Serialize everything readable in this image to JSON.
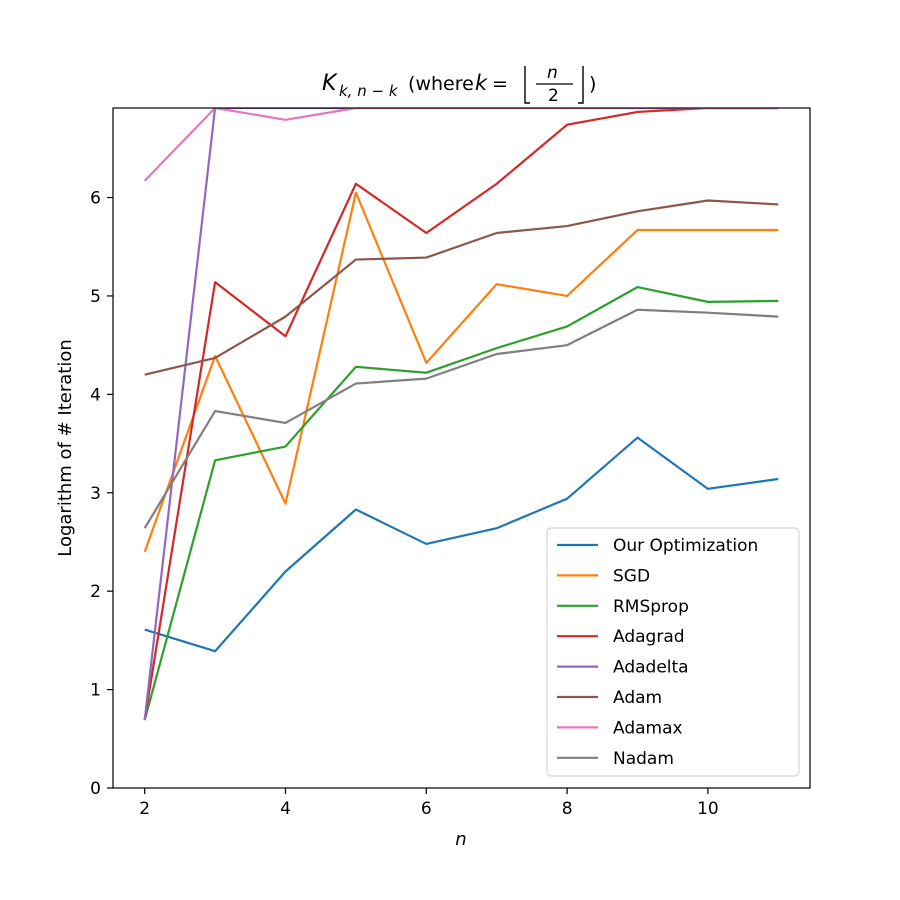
{
  "chart_data": {
    "type": "line",
    "title": "K_{k, n−k} (where k = ⌊n/2⌋)",
    "title_parts": {
      "k_letter": "K",
      "subscript": "k, n − k",
      "where_text": " (where ",
      "k_var": "k",
      "equals": " = ",
      "numerator": "n",
      "denominator": "2",
      "close_paren": ")"
    },
    "xlabel": "n",
    "ylabel": "Logarithm of # Iteration",
    "xlim": [
      1.55,
      11.45
    ],
    "ylim": [
      0,
      6.91
    ],
    "xticks": [
      2,
      4,
      6,
      8,
      10
    ],
    "yticks": [
      0,
      1,
      2,
      3,
      4,
      5,
      6
    ],
    "grid": false,
    "legend_position": "lower-right",
    "x": [
      2,
      3,
      4,
      5,
      6,
      7,
      8,
      9,
      10,
      11
    ],
    "series": [
      {
        "name": "Our Optimization",
        "color": "#1f77b4",
        "values": [
          1.61,
          1.39,
          2.2,
          2.83,
          2.48,
          2.64,
          2.94,
          3.56,
          3.04,
          3.14
        ]
      },
      {
        "name": "SGD",
        "color": "#ff7f0e",
        "values": [
          2.4,
          4.39,
          2.89,
          6.05,
          4.32,
          5.12,
          5.0,
          5.67,
          5.67,
          5.67
        ]
      },
      {
        "name": "RMSprop",
        "color": "#2ca02c",
        "values": [
          0.69,
          3.33,
          3.47,
          4.28,
          4.22,
          4.47,
          4.69,
          5.09,
          4.94,
          4.95
        ]
      },
      {
        "name": "Adagrad",
        "color": "#d62728",
        "values": [
          0.69,
          5.14,
          4.59,
          6.14,
          5.64,
          6.14,
          6.74,
          6.87,
          6.91,
          6.91
        ]
      },
      {
        "name": "Adadelta",
        "color": "#9467bd",
        "values": [
          0.69,
          6.91,
          6.91,
          6.91,
          6.91,
          6.91,
          6.91,
          6.91,
          6.91,
          6.91
        ]
      },
      {
        "name": "Adam",
        "color": "#8c564b",
        "values": [
          4.2,
          4.37,
          4.79,
          5.37,
          5.39,
          5.64,
          5.71,
          5.86,
          5.97,
          5.93
        ]
      },
      {
        "name": "Adamax",
        "color": "#e377c2",
        "values": [
          6.17,
          6.91,
          6.79,
          6.91,
          6.91,
          6.91,
          6.91,
          6.91,
          6.91,
          6.91
        ]
      },
      {
        "name": "Nadam",
        "color": "#7f7f7f",
        "values": [
          2.64,
          3.83,
          3.71,
          4.11,
          4.16,
          4.41,
          4.5,
          4.86,
          4.83,
          4.79
        ]
      }
    ]
  }
}
